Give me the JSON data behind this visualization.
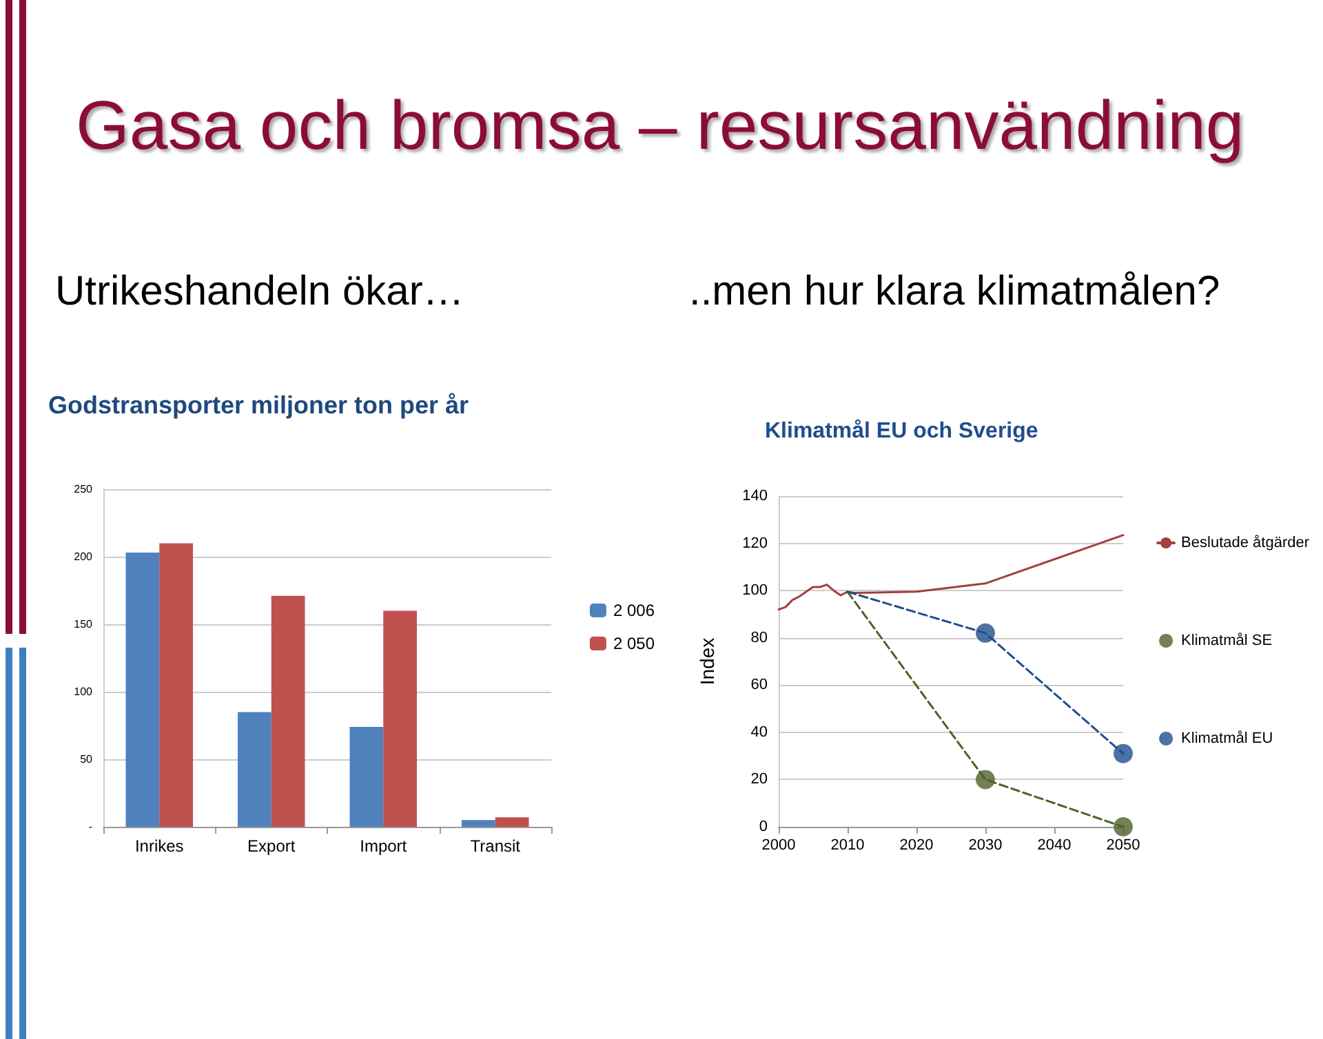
{
  "chart_data": [
    {
      "type": "bar",
      "title": "Godstransporter miljoner ton per år",
      "subtitle": "Utrikeshandeln ökar…",
      "annotations": [
        "Gasa och bromsa – resursanvändning"
      ],
      "categories": [
        "Inrikes",
        "Export",
        "Import",
        "Transit"
      ],
      "series": [
        {
          "name": "2 006",
          "color": "#4f81bd",
          "values": [
            203,
            85,
            74,
            5
          ]
        },
        {
          "name": "2 050",
          "color": "#c0504d",
          "values": [
            210,
            171,
            160,
            7
          ]
        }
      ],
      "ylim": [
        0,
        250
      ],
      "yticks": [
        {
          "value": 0,
          "label": "-"
        },
        50,
        100,
        150,
        200,
        250
      ],
      "grid": "y",
      "legend": "right"
    },
    {
      "type": "line",
      "title": "Klimatmål EU och Sverige",
      "subtitle": "..men hur klara klimatmålen?",
      "ylabel": "Index",
      "series": [
        {
          "name": "Beslutade åtgärder",
          "color": "#a0403f",
          "marker": "none",
          "line_style": "solid",
          "x": [
            2000,
            2001,
            2002,
            2003,
            2004,
            2005,
            2006,
            2007,
            2008,
            2009,
            2010,
            2011,
            2020,
            2030,
            2050
          ],
          "values": [
            92,
            93,
            96,
            97.5,
            99.5,
            101.5,
            101.5,
            102.5,
            100,
            98,
            99.5,
            99,
            99.5,
            103,
            123.5
          ]
        },
        {
          "color": "#4f6228",
          "marker": "none",
          "line_style": "dashed",
          "x": [
            2010,
            2030,
            2050
          ],
          "values": [
            99.5,
            20,
            0
          ]
        },
        {
          "color": "#1f4e8c",
          "marker": "none",
          "line_style": "dashed",
          "x": [
            2010,
            2030,
            2050
          ],
          "values": [
            99.5,
            82,
            31
          ]
        },
        {
          "name": "Klimatmål SE",
          "type": "scatter",
          "color": "#4f6228",
          "marker": "circle",
          "x": [
            2030,
            2050
          ],
          "values": [
            20,
            0
          ]
        },
        {
          "name": "Klimatmål EU",
          "type": "scatter",
          "color": "#1f4e8c",
          "marker": "circle",
          "x": [
            2030,
            2050
          ],
          "values": [
            82,
            31
          ]
        }
      ],
      "xlim": [
        2000,
        2050
      ],
      "xticks": [
        2000,
        2010,
        2020,
        2030,
        2040,
        2050
      ],
      "ylim": [
        0,
        140
      ],
      "yticks": [
        0,
        20,
        40,
        60,
        80,
        100,
        120,
        140
      ],
      "grid": "y",
      "legend": "right"
    }
  ]
}
